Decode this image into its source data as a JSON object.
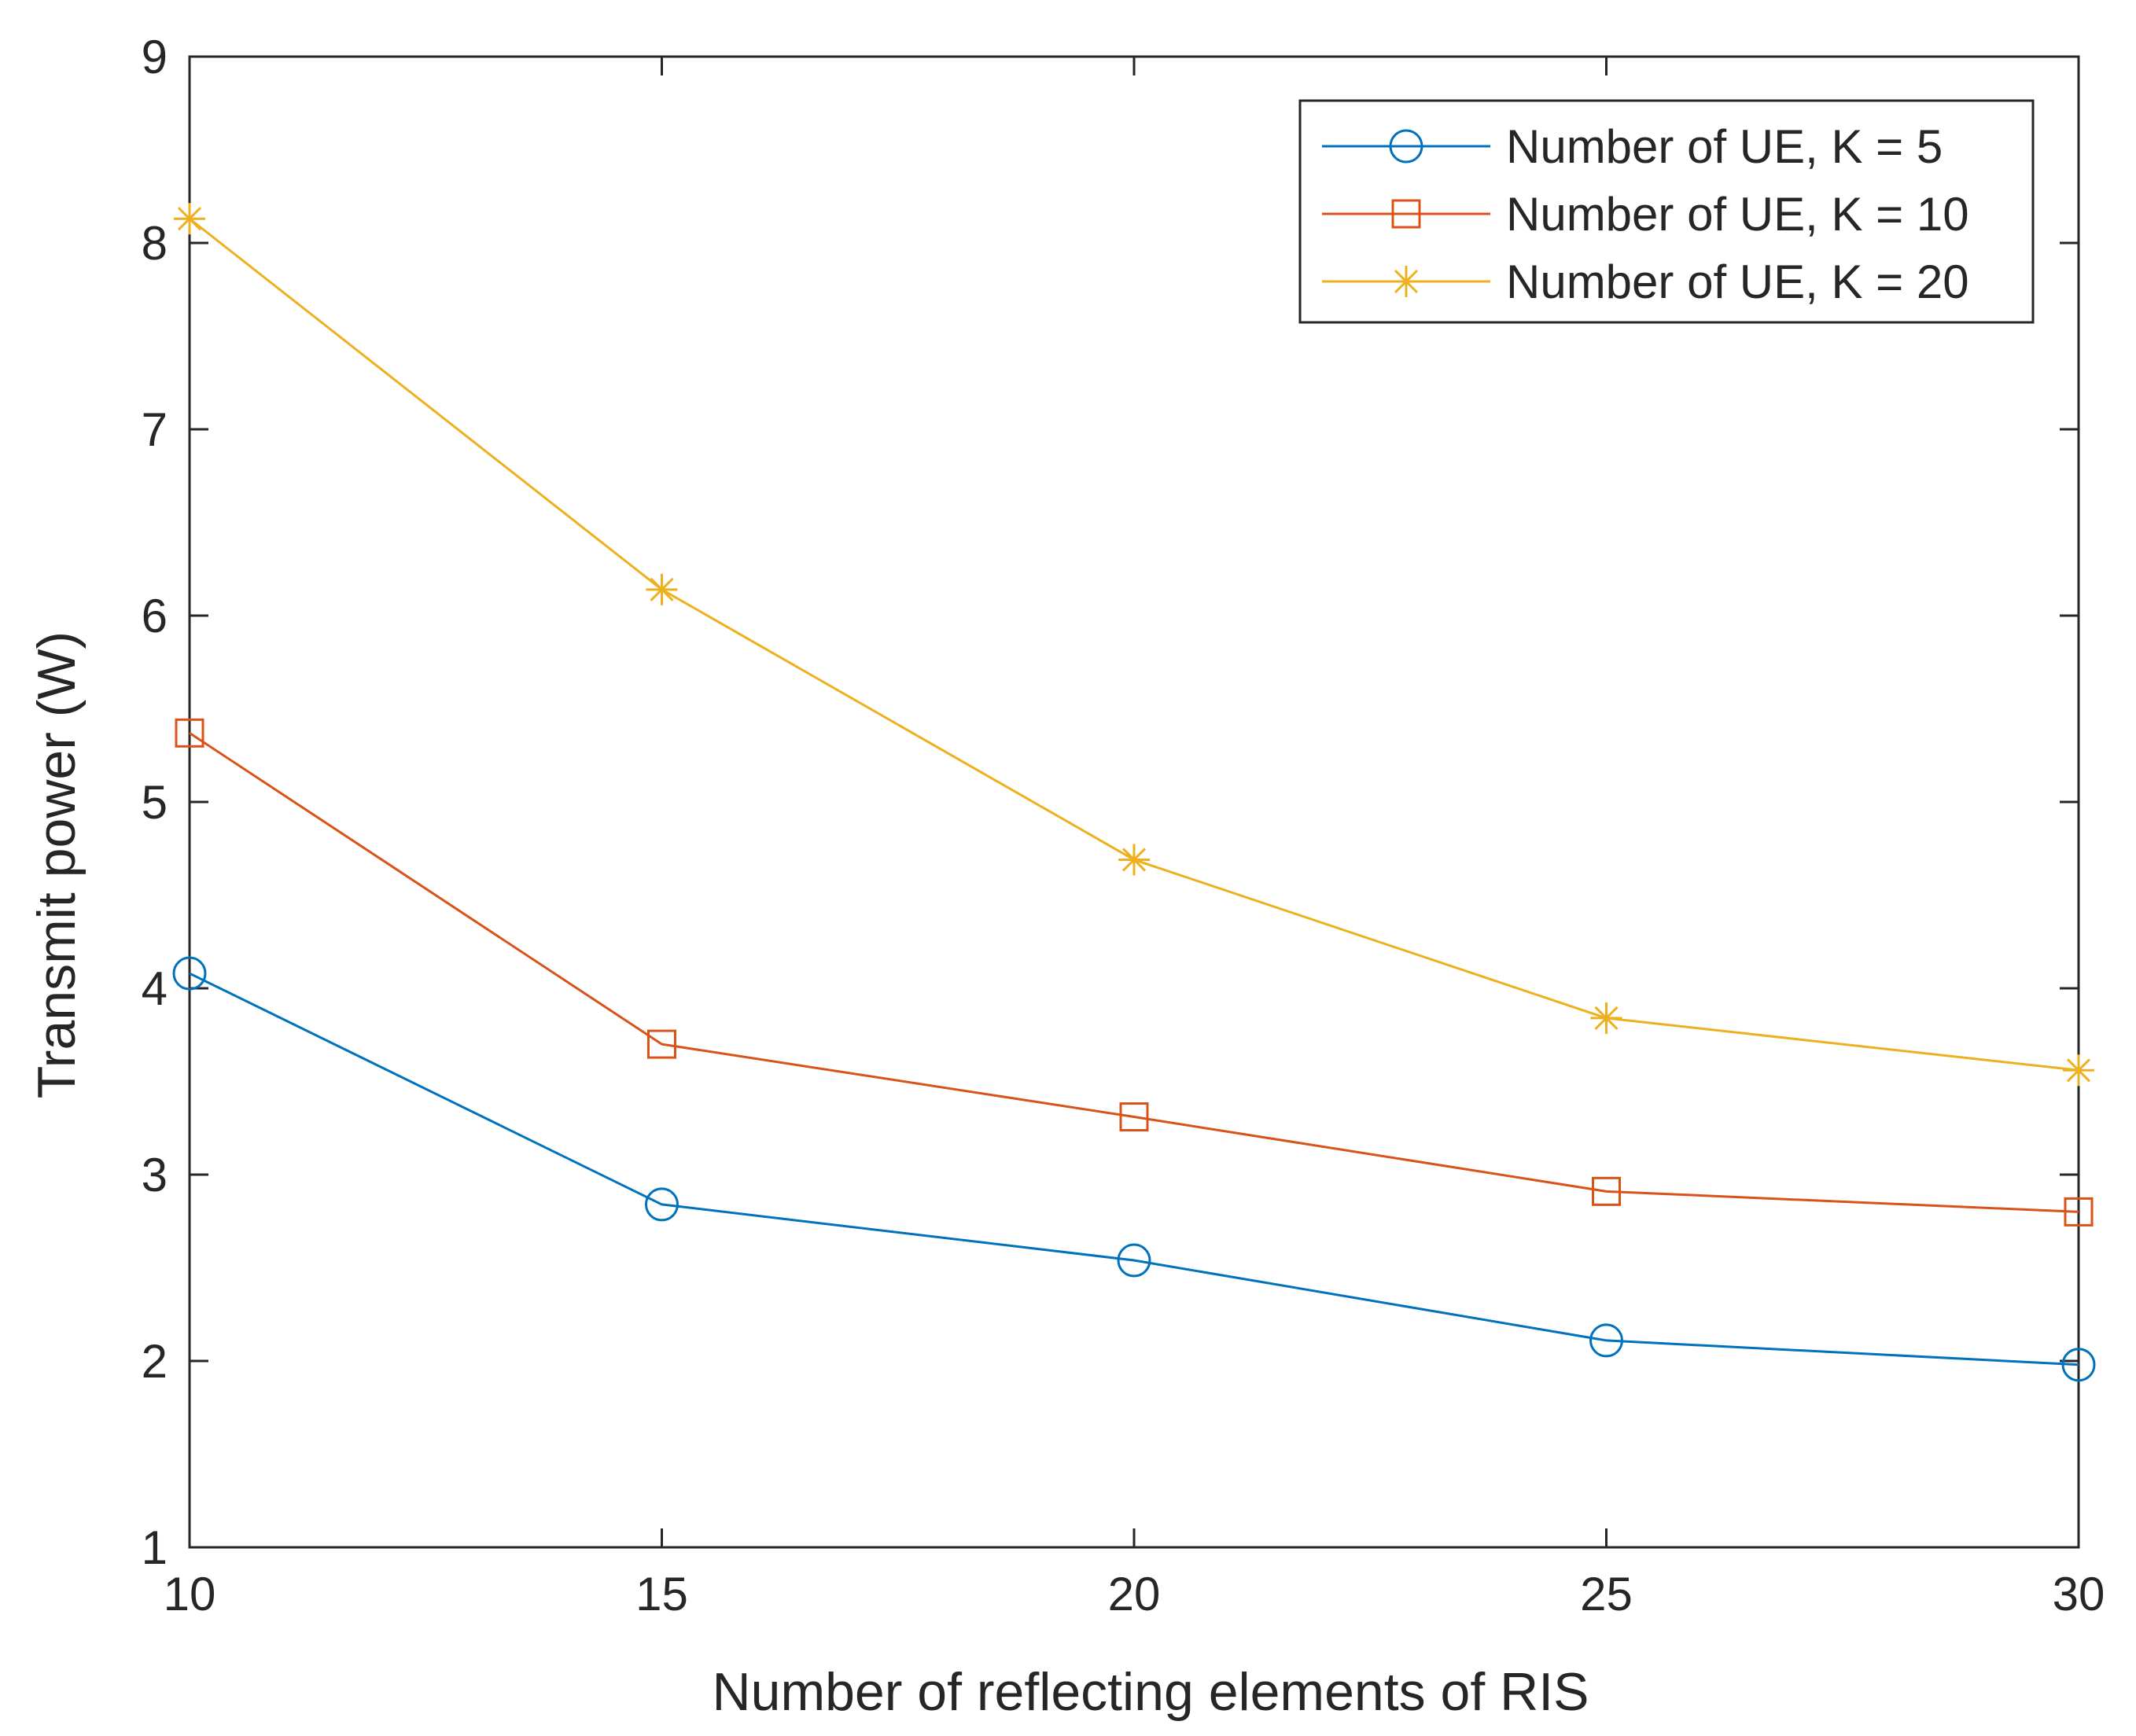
{
  "chart_data": {
    "type": "line",
    "title": "",
    "xlabel": "Number of reflecting elements of RIS",
    "ylabel": "Transmit power (W)",
    "x": [
      10,
      15,
      20,
      25,
      30
    ],
    "xlim": [
      10,
      30
    ],
    "ylim": [
      1,
      9
    ],
    "xticks": [
      10,
      15,
      20,
      25,
      30
    ],
    "yticks": [
      1,
      2,
      3,
      4,
      5,
      6,
      7,
      8,
      9
    ],
    "grid": false,
    "legend_position": "top-right",
    "series": [
      {
        "name": "Number of UE, K = 5",
        "color": "#0072BD",
        "marker": "circle",
        "values": [
          4.08,
          2.84,
          2.54,
          2.11,
          1.98
        ]
      },
      {
        "name": "Number of UE, K = 10",
        "color": "#D95319",
        "marker": "square",
        "values": [
          5.37,
          3.7,
          3.31,
          2.91,
          2.8
        ]
      },
      {
        "name": "Number of UE, K = 20",
        "color": "#EDB120",
        "marker": "asterisk",
        "values": [
          8.13,
          6.14,
          4.69,
          3.84,
          3.56
        ]
      }
    ]
  }
}
